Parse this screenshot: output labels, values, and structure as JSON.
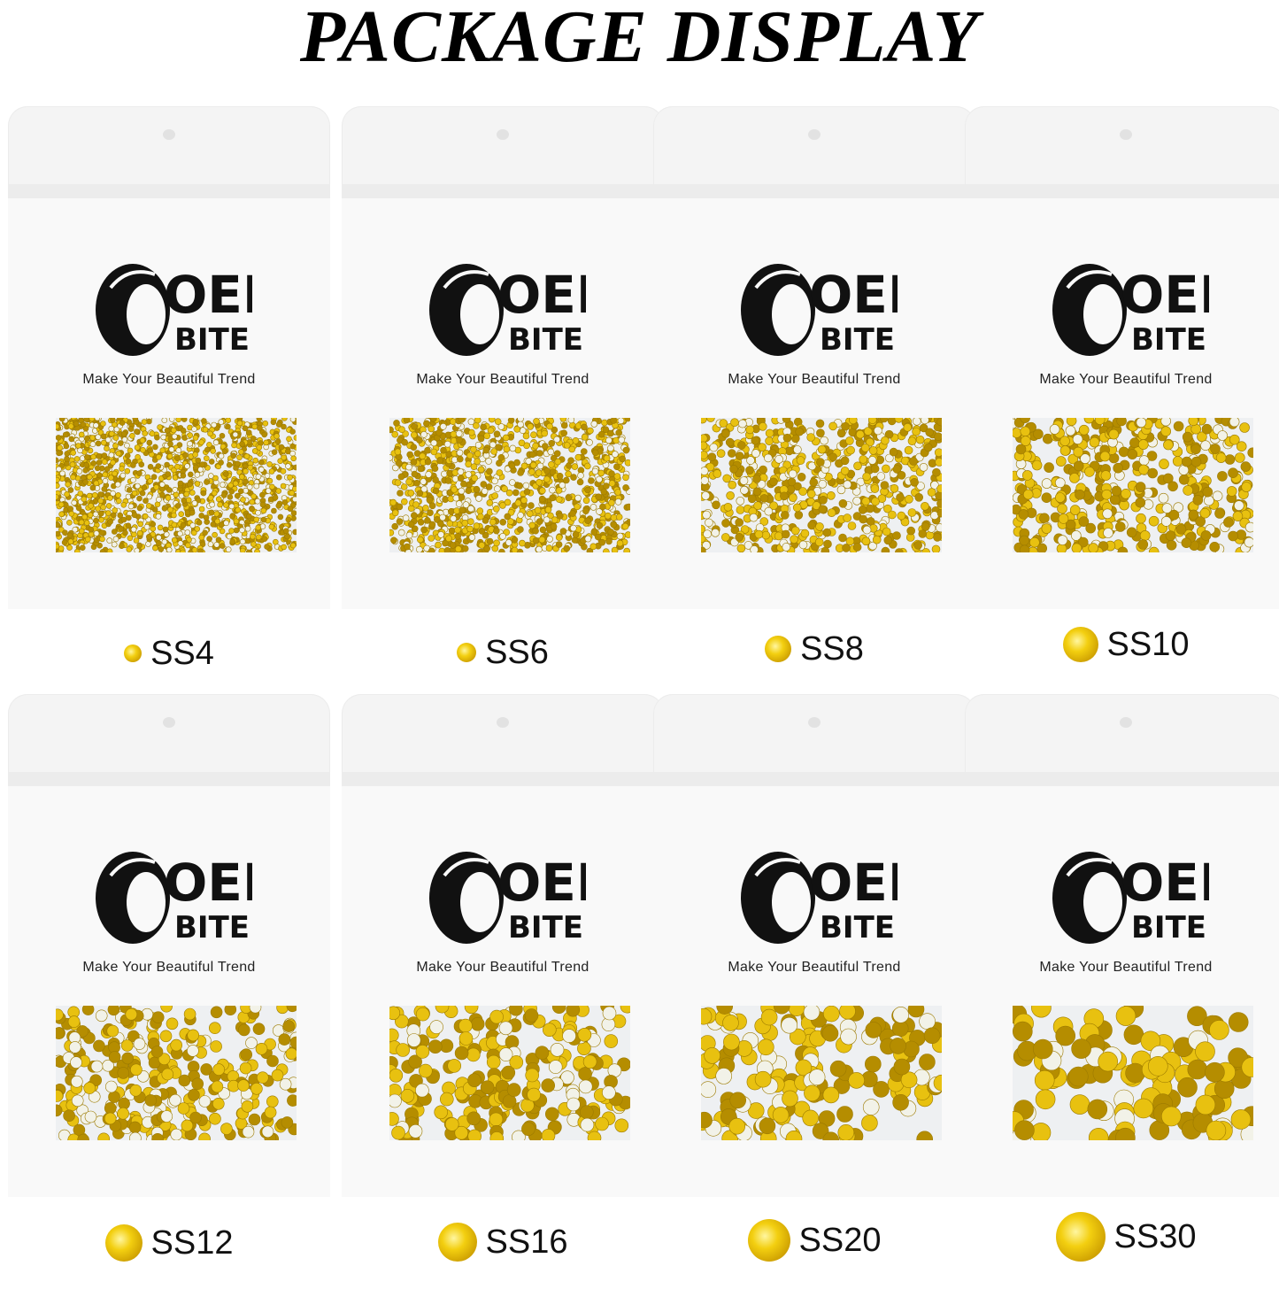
{
  "title": "PACKAGE DISPLAY",
  "brand": {
    "logo_top": "OEI",
    "logo_bottom": "BITE",
    "slogan": "Make Your Beautiful Trend"
  },
  "colors": {
    "gem": "#e8c110",
    "gem_dark": "#b58d00",
    "bag": "#f4f4f4"
  },
  "packages": [
    {
      "size": "SS4"
    },
    {
      "size": "SS6"
    },
    {
      "size": "SS8"
    },
    {
      "size": "SS10"
    },
    {
      "size": "SS12"
    },
    {
      "size": "SS16"
    },
    {
      "size": "SS20"
    },
    {
      "size": "SS30"
    }
  ]
}
